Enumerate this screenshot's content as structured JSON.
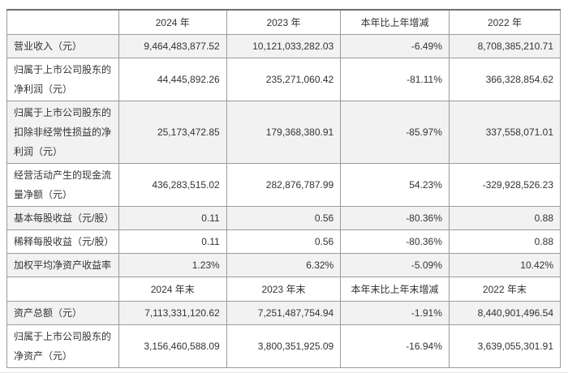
{
  "page": {
    "background": "#ffffff",
    "edge_line_color": "#e2e2e2"
  },
  "table": {
    "text_color": "#333333",
    "inner_border_color": "#9b9b9b",
    "outer_border_color": "#6f6f6f",
    "shaded_row_color": "#f2f2f2",
    "column_widths_pct": [
      20.2,
      19.5,
      20.6,
      19.6,
      20.1
    ],
    "rows": [
      {
        "type": "header",
        "cells": [
          "",
          "2024 年",
          "2023 年",
          "本年比上年增减",
          "2022 年"
        ]
      },
      {
        "type": "data",
        "shaded": true,
        "cells": [
          "营业收入（元）",
          "9,464,483,877.52",
          "10,121,033,282.03",
          "-6.49%",
          "8,708,385,210.71"
        ]
      },
      {
        "type": "data",
        "shaded": false,
        "cells": [
          "归属于上市公司股东的净利润（元）",
          "44,445,892.26",
          "235,271,060.42",
          "-81.11%",
          "366,328,854.62"
        ]
      },
      {
        "type": "data",
        "shaded": true,
        "cells": [
          "归属于上市公司股东的扣除非经常性损益的净利润（元）",
          "25,173,472.85",
          "179,368,380.91",
          "-85.97%",
          "337,558,071.01"
        ]
      },
      {
        "type": "data",
        "shaded": false,
        "cells": [
          "经营活动产生的现金流量净额（元）",
          "436,283,515.02",
          "282,876,787.99",
          "54.23%",
          "-329,928,526.23"
        ]
      },
      {
        "type": "data",
        "shaded": true,
        "cells": [
          "基本每股收益（元/股）",
          "0.11",
          "0.56",
          "-80.36%",
          "0.88"
        ]
      },
      {
        "type": "data",
        "shaded": false,
        "cells": [
          "稀释每股收益（元/股）",
          "0.11",
          "0.56",
          "-80.36%",
          "0.88"
        ]
      },
      {
        "type": "data",
        "shaded": true,
        "cells": [
          "加权平均净资产收益率",
          "1.23%",
          "6.32%",
          "-5.09%",
          "10.42%"
        ]
      },
      {
        "type": "header",
        "cells": [
          "",
          "2024 年末",
          "2023 年末",
          "本年末比上年末增减",
          "2022 年末"
        ]
      },
      {
        "type": "data",
        "shaded": true,
        "cells": [
          "资产总额（元）",
          "7,113,331,120.62",
          "7,251,487,754.94",
          "-1.91%",
          "8,440,901,496.54"
        ]
      },
      {
        "type": "data",
        "shaded": false,
        "cells": [
          "归属于上市公司股东的净资产（元）",
          "3,156,460,588.09",
          "3,800,351,925.09",
          "-16.94%",
          "3,639,055,301.91"
        ]
      }
    ]
  }
}
